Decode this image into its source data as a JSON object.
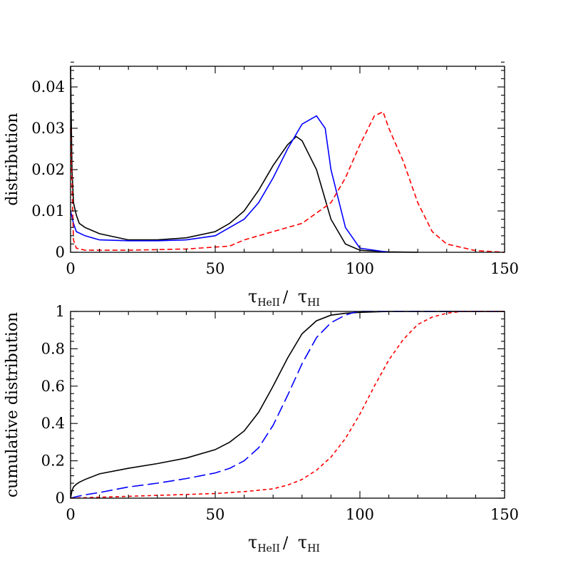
{
  "chart_data": [
    {
      "type": "line",
      "panel": "top",
      "ylabel": "distribution",
      "xlabel_parts": {
        "tau": "τ",
        "sub1": "HeII",
        "slash": "/",
        "sub2": "HI"
      },
      "xlim": [
        0,
        150
      ],
      "ylim": [
        0,
        0.045
      ],
      "xticks": [
        0,
        50,
        100,
        150
      ],
      "yticks": [
        0,
        0.01,
        0.02,
        0.03,
        0.04
      ],
      "ytick_labels": [
        "0",
        "0.01",
        "0.02",
        "0.03",
        "0.04"
      ],
      "xtick_labels": [
        "0",
        "50",
        "100",
        "150"
      ],
      "grid": false,
      "legend": "none",
      "series": [
        {
          "color": "#000000",
          "style": "solid",
          "x": [
            0,
            0.5,
            1,
            2,
            3,
            5,
            10,
            20,
            30,
            40,
            50,
            55,
            60,
            65,
            70,
            75,
            78,
            80,
            85,
            90,
            95,
            100,
            110,
            120
          ],
          "y": [
            0.045,
            0.02,
            0.012,
            0.009,
            0.007,
            0.006,
            0.0045,
            0.003,
            0.003,
            0.0035,
            0.005,
            0.007,
            0.01,
            0.015,
            0.021,
            0.026,
            0.028,
            0.027,
            0.02,
            0.008,
            0.002,
            0.0005,
            0.0001,
            0
          ]
        },
        {
          "color": "#0000ff",
          "style": "solid",
          "x": [
            0,
            1,
            2,
            5,
            10,
            20,
            30,
            40,
            50,
            55,
            60,
            65,
            70,
            75,
            80,
            85,
            88,
            90,
            95,
            100,
            110
          ],
          "y": [
            0.01,
            0.007,
            0.005,
            0.004,
            0.003,
            0.0028,
            0.0028,
            0.003,
            0.004,
            0.006,
            0.008,
            0.012,
            0.018,
            0.025,
            0.031,
            0.033,
            0.03,
            0.02,
            0.006,
            0.001,
            0
          ]
        },
        {
          "color": "#ff0000",
          "style": "dashed",
          "x": [
            0,
            1,
            2,
            5,
            20,
            40,
            55,
            60,
            70,
            80,
            90,
            95,
            100,
            105,
            108,
            110,
            115,
            120,
            125,
            130,
            140,
            150
          ],
          "y": [
            0.03,
            0.003,
            0.001,
            0.0005,
            0.0005,
            0.0008,
            0.0015,
            0.003,
            0.005,
            0.007,
            0.012,
            0.018,
            0.026,
            0.033,
            0.034,
            0.03,
            0.022,
            0.012,
            0.005,
            0.002,
            0.0004,
            0
          ]
        }
      ]
    },
    {
      "type": "line",
      "panel": "bottom",
      "ylabel": "cumulative  distribution",
      "xlabel_parts": {
        "tau": "τ",
        "sub1": "HeII",
        "slash": "/",
        "sub2": "HI"
      },
      "xlim": [
        0,
        150
      ],
      "ylim": [
        0,
        1
      ],
      "xticks": [
        0,
        50,
        100,
        150
      ],
      "yticks": [
        0,
        0.2,
        0.4,
        0.6,
        0.8,
        1
      ],
      "ytick_labels": [
        "0",
        "0.2",
        "0.4",
        "0.6",
        "0.8",
        "1"
      ],
      "xtick_labels": [
        "0",
        "50",
        "100",
        "150"
      ],
      "grid": false,
      "legend": "none",
      "series": [
        {
          "color": "#000000",
          "style": "solid",
          "x": [
            0,
            0.5,
            1,
            2,
            3,
            5,
            10,
            20,
            30,
            40,
            50,
            55,
            60,
            65,
            70,
            75,
            80,
            85,
            90,
            95,
            100,
            110,
            150
          ],
          "y": [
            0,
            0.04,
            0.06,
            0.075,
            0.085,
            0.1,
            0.13,
            0.16,
            0.185,
            0.215,
            0.26,
            0.3,
            0.36,
            0.46,
            0.6,
            0.75,
            0.88,
            0.95,
            0.98,
            0.99,
            0.995,
            1.0,
            1.0
          ]
        },
        {
          "color": "#0000ff",
          "style": "longdash",
          "x": [
            0,
            2,
            5,
            10,
            20,
            30,
            40,
            50,
            55,
            60,
            65,
            70,
            75,
            80,
            85,
            90,
            95,
            98,
            100,
            110,
            150
          ],
          "y": [
            0,
            0.008,
            0.018,
            0.03,
            0.06,
            0.08,
            0.105,
            0.135,
            0.16,
            0.2,
            0.27,
            0.39,
            0.55,
            0.72,
            0.86,
            0.94,
            0.98,
            0.995,
            1.0,
            1.0,
            1.0
          ]
        },
        {
          "color": "#ff0000",
          "style": "shortdash",
          "x": [
            0,
            20,
            40,
            50,
            60,
            70,
            75,
            80,
            85,
            90,
            95,
            100,
            105,
            110,
            115,
            120,
            125,
            130,
            135,
            150
          ],
          "y": [
            0,
            0.01,
            0.02,
            0.025,
            0.035,
            0.05,
            0.07,
            0.1,
            0.15,
            0.22,
            0.32,
            0.45,
            0.6,
            0.74,
            0.85,
            0.93,
            0.97,
            0.99,
            1.0,
            1.0
          ]
        }
      ]
    }
  ]
}
